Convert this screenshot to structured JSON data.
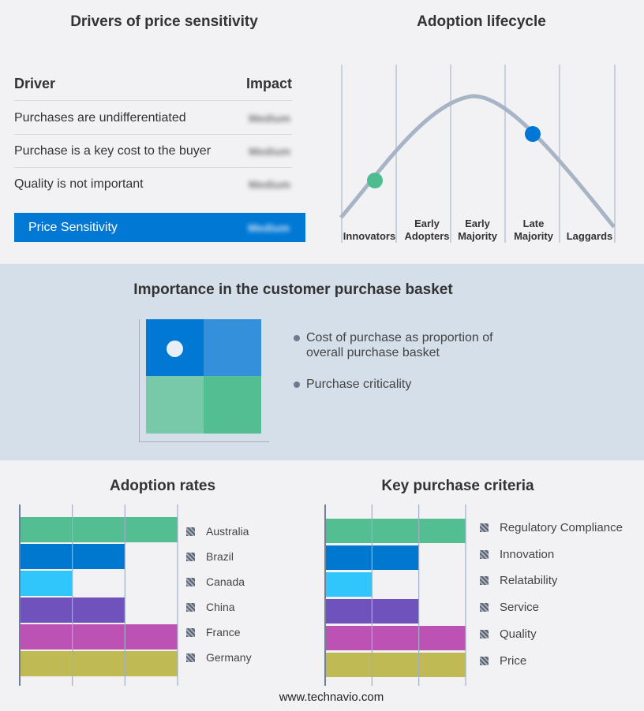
{
  "drivers": {
    "title": "Drivers of price sensitivity",
    "col_driver": "Driver",
    "col_impact": "Impact",
    "rows": [
      {
        "driver": "Purchases are undifferentiated",
        "impact": "Medium"
      },
      {
        "driver": "Purchase is a key cost to the buyer",
        "impact": "Medium"
      },
      {
        "driver": "Quality is not important",
        "impact": "Medium"
      }
    ],
    "summary": {
      "label": "Price Sensitivity",
      "impact": "Medium"
    }
  },
  "lifecycle": {
    "title": "Adoption lifecycle",
    "stages": [
      "Innovators",
      "Early Adopters",
      "Early Majority",
      "Late Majority",
      "Laggards"
    ],
    "markers": [
      {
        "stage": "Innovators",
        "color": "#4dbd8f"
      },
      {
        "stage": "Late Majority",
        "color": "#0077d4"
      }
    ]
  },
  "basket": {
    "title": "Importance in the customer purchase basket",
    "legend": [
      "Cost of purchase as proportion of overall purchase basket",
      "Purchase criticality"
    ]
  },
  "chart_data": [
    {
      "type": "bar",
      "title": "Adoption rates",
      "categories": [
        "Australia",
        "Brazil",
        "Canada",
        "China",
        "France",
        "Germany"
      ],
      "values": [
        3,
        2,
        1,
        2,
        3,
        3
      ],
      "xlim": [
        0,
        3
      ],
      "colors": [
        "#52be92",
        "#0078d0",
        "#30c5fb",
        "#6f52bc",
        "#bd52b5",
        "#bfba54"
      ]
    },
    {
      "type": "bar",
      "title": "Key purchase criteria",
      "categories": [
        "Regulatory Compliance",
        "Innovation",
        "Relatability",
        "Service",
        "Quality",
        "Price"
      ],
      "values": [
        3,
        2,
        1,
        2,
        3,
        3
      ],
      "xlim": [
        0,
        3
      ],
      "colors": [
        "#52be92",
        "#0078d0",
        "#30c5fb",
        "#6f52bc",
        "#bd52b5",
        "#bfba54"
      ]
    }
  ],
  "footer": "www.technavio.com"
}
